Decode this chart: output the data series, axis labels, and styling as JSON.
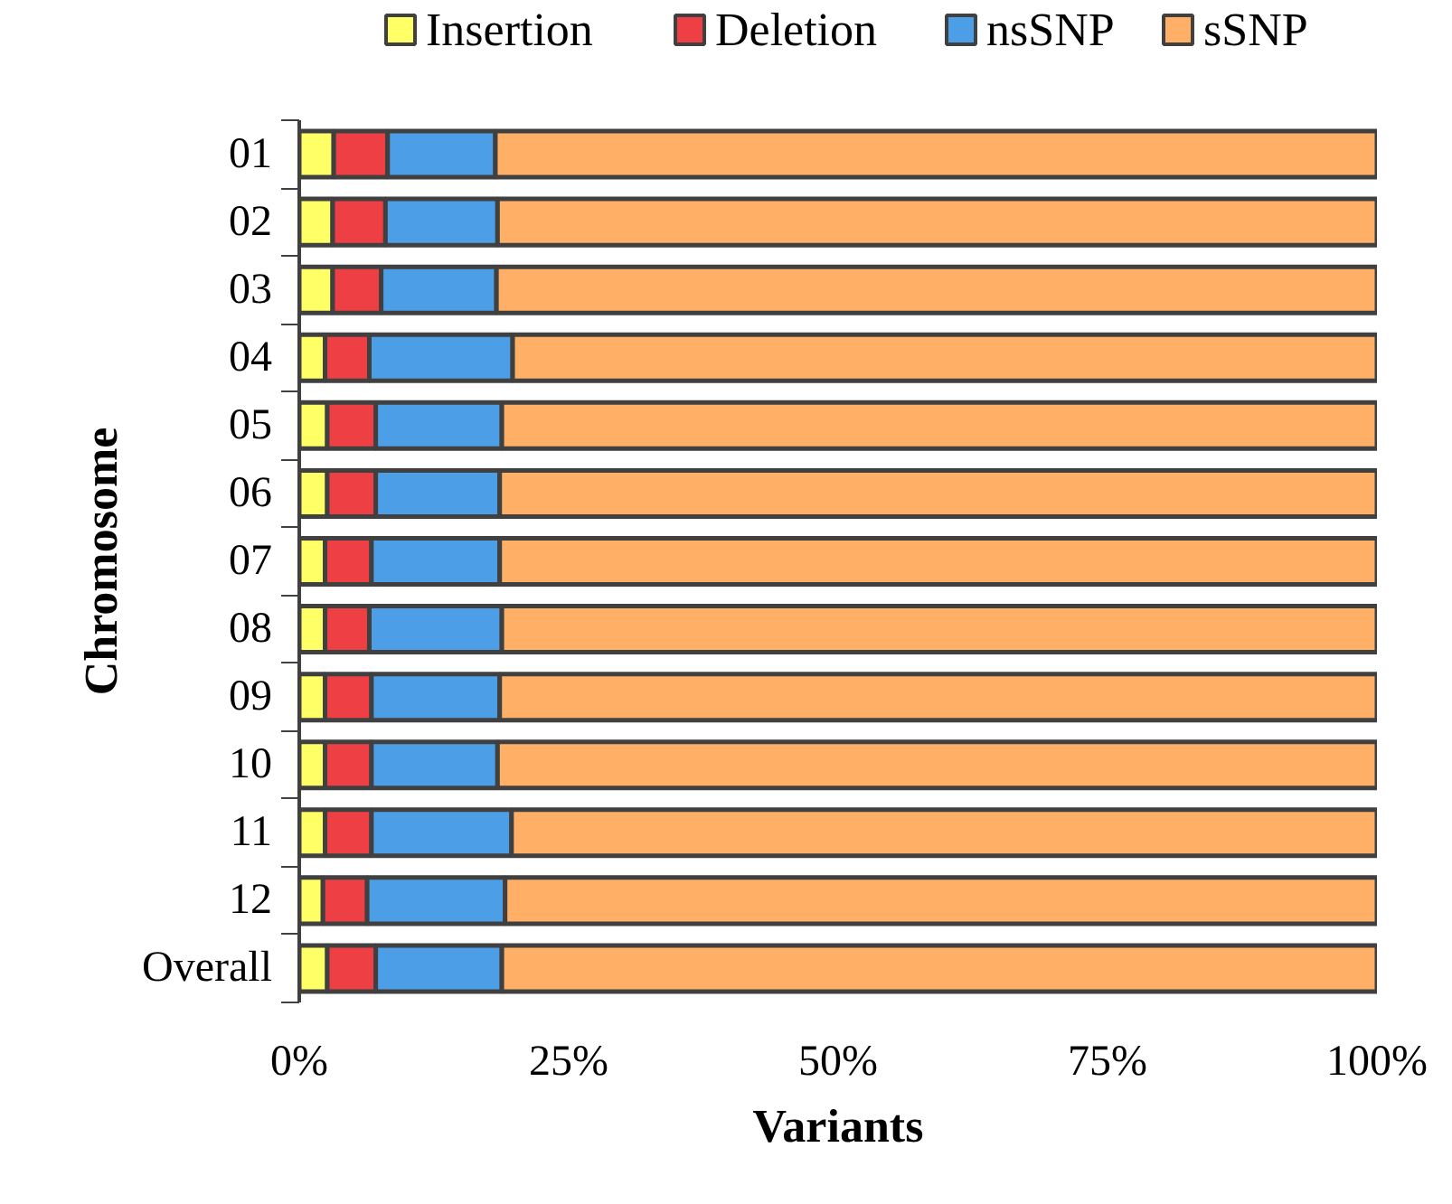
{
  "chart_data": {
    "type": "bar",
    "orientation": "horizontal",
    "stacked": true,
    "xlabel": "Variants",
    "ylabel": "Chromosome",
    "categories": [
      "01",
      "02",
      "03",
      "04",
      "05",
      "06",
      "07",
      "08",
      "09",
      "10",
      "11",
      "12",
      "Overall"
    ],
    "series": [
      {
        "name": "Insertion",
        "color": "#ffff66",
        "values": [
          3.2,
          3.1,
          3.1,
          2.4,
          2.6,
          2.6,
          2.4,
          2.4,
          2.4,
          2.4,
          2.4,
          2.2,
          2.6
        ]
      },
      {
        "name": "Deletion",
        "color": "#ee4044",
        "values": [
          5.0,
          4.9,
          4.5,
          4.1,
          4.5,
          4.5,
          4.3,
          4.1,
          4.3,
          4.3,
          4.3,
          4.1,
          4.5
        ]
      },
      {
        "name": "nsSNP",
        "color": "#4c9ee6",
        "values": [
          10.0,
          10.4,
          10.7,
          13.3,
          11.7,
          11.5,
          11.9,
          12.3,
          11.9,
          11.7,
          13.0,
          12.8,
          11.7
        ]
      },
      {
        "name": "sSNP",
        "color": "#ffb066",
        "values": [
          81.8,
          81.6,
          81.7,
          80.2,
          81.2,
          81.4,
          81.4,
          81.2,
          81.4,
          81.6,
          80.3,
          80.9,
          81.2
        ]
      }
    ],
    "xlim": [
      0,
      100
    ],
    "xticks": [
      {
        "value": 0,
        "label": "0%"
      },
      {
        "value": 25,
        "label": "25%"
      },
      {
        "value": 50,
        "label": "50%"
      },
      {
        "value": 75,
        "label": "75%"
      },
      {
        "value": 100,
        "label": "100%"
      }
    ],
    "grid": false,
    "legend": "top"
  }
}
